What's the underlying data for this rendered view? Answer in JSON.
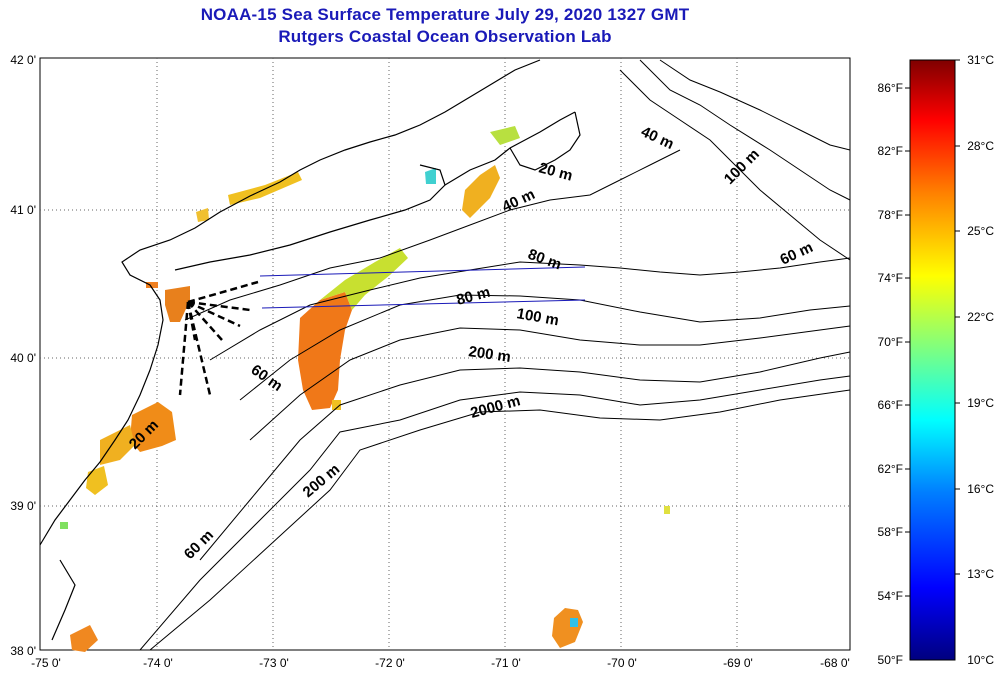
{
  "title": "NOAA-15 Sea Surface Temperature July 29, 2020 1327 GMT",
  "subtitle": "Rutgers Coastal Ocean Observation Lab",
  "lat_labels": [
    "42 0'",
    "41 0'",
    "40 0'",
    "39 0'",
    "38 0'"
  ],
  "lon_labels": [
    "-75 0'",
    "-74 0'",
    "-73 0'",
    "-72 0'",
    "-71 0'",
    "-70 0'",
    "-69 0'",
    "-68 0'"
  ],
  "contour_labels": [
    {
      "text": "40 m"
    },
    {
      "text": "100 m"
    },
    {
      "text": "20 m"
    },
    {
      "text": "40 m"
    },
    {
      "text": "80 m"
    },
    {
      "text": "60 m"
    },
    {
      "text": "80 m"
    },
    {
      "text": "100 m"
    },
    {
      "text": "200 m"
    },
    {
      "text": "60 m"
    },
    {
      "text": "2000 m"
    },
    {
      "text": "20 m"
    },
    {
      "text": "200 m"
    },
    {
      "text": "60 m"
    }
  ],
  "colorbar": {
    "fahrenheit": [
      "86°F",
      "82°F",
      "78°F",
      "74°F",
      "70°F",
      "66°F",
      "62°F",
      "58°F",
      "54°F",
      "50°F"
    ],
    "celsius": [
      "31°C",
      "28°C",
      "25°C",
      "22°C",
      "19°C",
      "16°C",
      "13°C",
      "10°C"
    ],
    "min_c": 10,
    "max_c": 31,
    "colors": [
      "#00007f",
      "#0000ff",
      "#007fff",
      "#00ffff",
      "#7fff7f",
      "#ffff00",
      "#ff7f00",
      "#ff0000",
      "#7f0000"
    ]
  }
}
